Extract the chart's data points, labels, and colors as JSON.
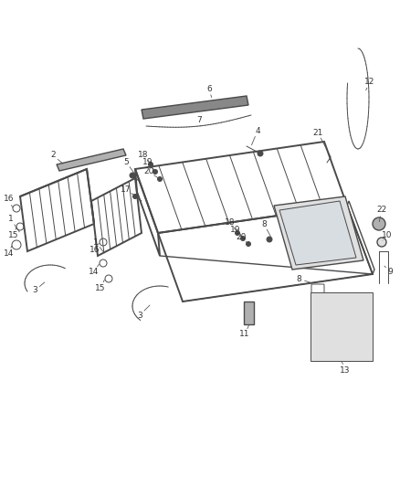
{
  "bg_color": "#ffffff",
  "line_color": "#4a4a4a",
  "label_color": "#333333",
  "fig_width": 4.38,
  "fig_height": 5.33,
  "dpi": 100,
  "gray_fill": "#c8c8c8",
  "light_gray": "#e0e0e0",
  "dark_gray": "#888888",
  "mid_gray": "#b0b0b0"
}
